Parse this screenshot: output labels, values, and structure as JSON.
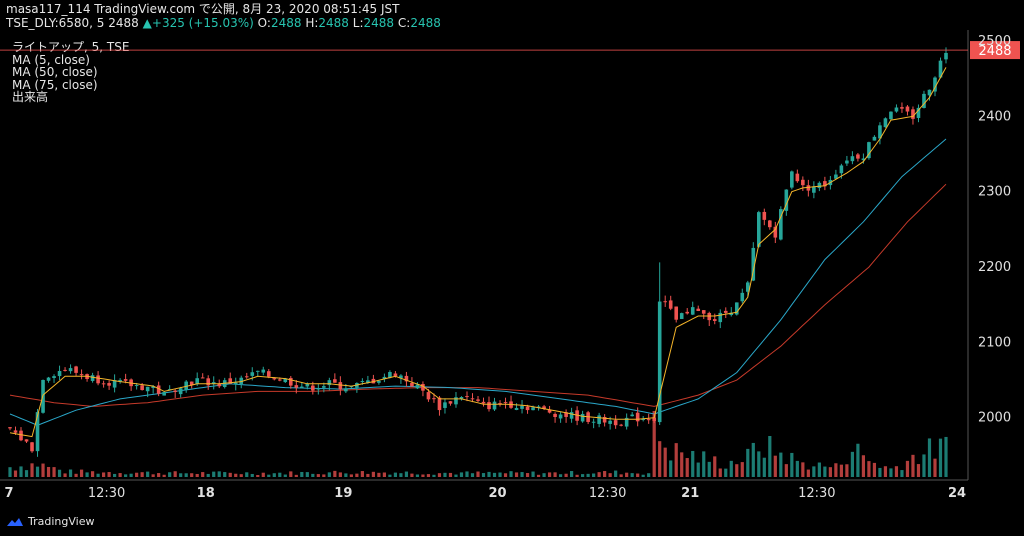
{
  "header": {
    "line1": "masa117_114 TradingView.com で公開, 8月 23, 2020 08:51:45 JST",
    "symbol": "TSE_DLY:6580, 5",
    "last": "2488",
    "change": "+325 (+15.03%)",
    "o_label": "O:",
    "o": "2488",
    "h_label": "H:",
    "h": "2488",
    "l_label": "L:",
    "l": "2488",
    "c_label": "C:",
    "c": "2488"
  },
  "legend": {
    "title": "ライトアップ, 5, TSE",
    "ma5": "MA (5, close)",
    "ma50": "MA (50, close)",
    "ma75": "MA (75, close)",
    "volume": "出来高"
  },
  "brand": "TradingView",
  "colors": {
    "up": "#26a69a",
    "down": "#ef5350",
    "ma5": "#f5b52a",
    "ma50": "#2aa7c9",
    "ma75": "#c63a2a",
    "price_tag": "#ef5350"
  },
  "chart_data": {
    "type": "candlestick",
    "symbol": "TSE_DLY:6580",
    "interval": "5",
    "x_tick_labels": [
      "7",
      "12:30",
      "18",
      "19",
      "20",
      "12:30",
      "21",
      "12:30",
      "24"
    ],
    "y_ticks": [
      2000,
      2100,
      2200,
      2300,
      2400,
      2500
    ],
    "ylim": [
      1920,
      2510
    ],
    "last_price": 2488,
    "grid": false,
    "close_path": [
      [
        0,
        1985
      ],
      [
        4,
        1960
      ],
      [
        6,
        2055
      ],
      [
        10,
        2065
      ],
      [
        14,
        2055
      ],
      [
        20,
        2045
      ],
      [
        26,
        2040
      ],
      [
        28,
        2030
      ],
      [
        31,
        2045
      ],
      [
        34,
        2050
      ],
      [
        38,
        2045
      ],
      [
        42,
        2050
      ],
      [
        45,
        2060
      ],
      [
        50,
        2050
      ],
      [
        54,
        2040
      ],
      [
        58,
        2045
      ],
      [
        62,
        2040
      ],
      [
        66,
        2050
      ],
      [
        70,
        2060
      ],
      [
        75,
        2035
      ],
      [
        78,
        2015
      ],
      [
        82,
        2030
      ],
      [
        86,
        2015
      ],
      [
        90,
        2020
      ],
      [
        94,
        2015
      ],
      [
        100,
        2005
      ],
      [
        104,
        2000
      ],
      [
        110,
        1995
      ],
      [
        114,
        2000
      ],
      [
        117,
        2000
      ],
      [
        118,
        2160
      ],
      [
        121,
        2130
      ],
      [
        125,
        2145
      ],
      [
        128,
        2130
      ],
      [
        132,
        2150
      ],
      [
        134,
        2175
      ],
      [
        136,
        2270
      ],
      [
        139,
        2245
      ],
      [
        142,
        2330
      ],
      [
        144,
        2305
      ],
      [
        148,
        2310
      ],
      [
        152,
        2345
      ],
      [
        155,
        2350
      ],
      [
        158,
        2390
      ],
      [
        160,
        2410
      ],
      [
        164,
        2400
      ],
      [
        167,
        2440
      ],
      [
        170,
        2488
      ]
    ],
    "ma5_path": [
      [
        0,
        1980
      ],
      [
        4,
        1975
      ],
      [
        6,
        2030
      ],
      [
        10,
        2055
      ],
      [
        14,
        2055
      ],
      [
        20,
        2048
      ],
      [
        26,
        2042
      ],
      [
        28,
        2035
      ],
      [
        31,
        2040
      ],
      [
        34,
        2045
      ],
      [
        38,
        2045
      ],
      [
        42,
        2048
      ],
      [
        45,
        2055
      ],
      [
        50,
        2052
      ],
      [
        54,
        2045
      ],
      [
        58,
        2045
      ],
      [
        62,
        2042
      ],
      [
        66,
        2048
      ],
      [
        70,
        2055
      ],
      [
        75,
        2042
      ],
      [
        78,
        2025
      ],
      [
        82,
        2025
      ],
      [
        86,
        2018
      ],
      [
        90,
        2018
      ],
      [
        94,
        2016
      ],
      [
        100,
        2008
      ],
      [
        104,
        2002
      ],
      [
        110,
        1998
      ],
      [
        114,
        1998
      ],
      [
        117,
        2000
      ],
      [
        118,
        2030
      ],
      [
        121,
        2120
      ],
      [
        125,
        2135
      ],
      [
        128,
        2135
      ],
      [
        132,
        2140
      ],
      [
        134,
        2160
      ],
      [
        136,
        2230
      ],
      [
        139,
        2250
      ],
      [
        142,
        2300
      ],
      [
        144,
        2305
      ],
      [
        148,
        2308
      ],
      [
        152,
        2325
      ],
      [
        155,
        2340
      ],
      [
        158,
        2370
      ],
      [
        160,
        2395
      ],
      [
        164,
        2400
      ],
      [
        167,
        2425
      ],
      [
        170,
        2465
      ]
    ],
    "ma50_path": [
      [
        0,
        2005
      ],
      [
        5,
        1990
      ],
      [
        12,
        2010
      ],
      [
        20,
        2025
      ],
      [
        30,
        2035
      ],
      [
        40,
        2045
      ],
      [
        50,
        2040
      ],
      [
        60,
        2038
      ],
      [
        70,
        2042
      ],
      [
        80,
        2040
      ],
      [
        90,
        2035
      ],
      [
        100,
        2025
      ],
      [
        110,
        2015
      ],
      [
        117,
        2005
      ],
      [
        125,
        2025
      ],
      [
        132,
        2060
      ],
      [
        140,
        2130
      ],
      [
        148,
        2210
      ],
      [
        155,
        2260
      ],
      [
        162,
        2320
      ],
      [
        170,
        2370
      ]
    ],
    "ma75_path": [
      [
        0,
        2030
      ],
      [
        8,
        2020
      ],
      [
        15,
        2015
      ],
      [
        25,
        2020
      ],
      [
        35,
        2030
      ],
      [
        45,
        2035
      ],
      [
        55,
        2035
      ],
      [
        65,
        2038
      ],
      [
        75,
        2040
      ],
      [
        85,
        2040
      ],
      [
        95,
        2035
      ],
      [
        105,
        2030
      ],
      [
        117,
        2015
      ],
      [
        125,
        2030
      ],
      [
        132,
        2050
      ],
      [
        140,
        2095
      ],
      [
        148,
        2150
      ],
      [
        156,
        2200
      ],
      [
        163,
        2260
      ],
      [
        170,
        2310
      ]
    ],
    "volume_scale_max": 100,
    "volume_path": [
      [
        0,
        15
      ],
      [
        5,
        20
      ],
      [
        10,
        8
      ],
      [
        20,
        7
      ],
      [
        30,
        6
      ],
      [
        40,
        6
      ],
      [
        50,
        6
      ],
      [
        60,
        7
      ],
      [
        70,
        7
      ],
      [
        80,
        6
      ],
      [
        90,
        6
      ],
      [
        100,
        6
      ],
      [
        110,
        7
      ],
      [
        116,
        6
      ],
      [
        117,
        100
      ],
      [
        118,
        60
      ],
      [
        120,
        40
      ],
      [
        125,
        30
      ],
      [
        130,
        20
      ],
      [
        134,
        30
      ],
      [
        136,
        50
      ],
      [
        140,
        35
      ],
      [
        144,
        20
      ],
      [
        150,
        15
      ],
      [
        153,
        45
      ],
      [
        156,
        25
      ],
      [
        160,
        12
      ],
      [
        164,
        30
      ],
      [
        167,
        40
      ],
      [
        170,
        45
      ]
    ]
  }
}
